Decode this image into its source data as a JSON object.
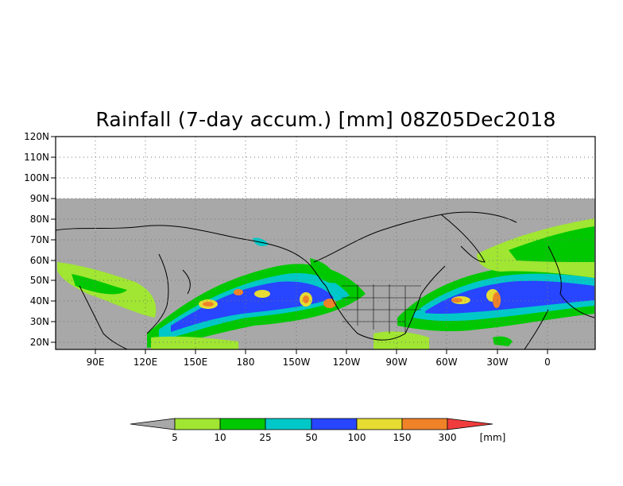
{
  "title": "Rainfall (7-day accum.) [mm] 08Z05Dec2018",
  "lat_labels": [
    "120N",
    "110N",
    "100N",
    "90N",
    "80N",
    "70N",
    "60N",
    "50N",
    "40N",
    "30N",
    "20N"
  ],
  "lon_labels": [
    "90E",
    "120E",
    "150E",
    "180",
    "150W",
    "120W",
    "90W",
    "60W",
    "30W",
    "0"
  ],
  "colorbar": {
    "thresholds": [
      "5",
      "10",
      "25",
      "50",
      "100",
      "150",
      "300"
    ],
    "unit": "[mm]",
    "colors": {
      "below": "#a8a8a8",
      "c5_10": "#a0e632",
      "c10_25": "#00c800",
      "c25_50": "#00c8c8",
      "c50_100": "#2845ff",
      "c100_150": "#e6dc32",
      "c150_300": "#f08228",
      "above": "#f03c3c"
    }
  },
  "map_colors": {
    "no_data": "#ffffff",
    "land_sea_dry": "#a8a8a8",
    "coast": "#000000"
  }
}
